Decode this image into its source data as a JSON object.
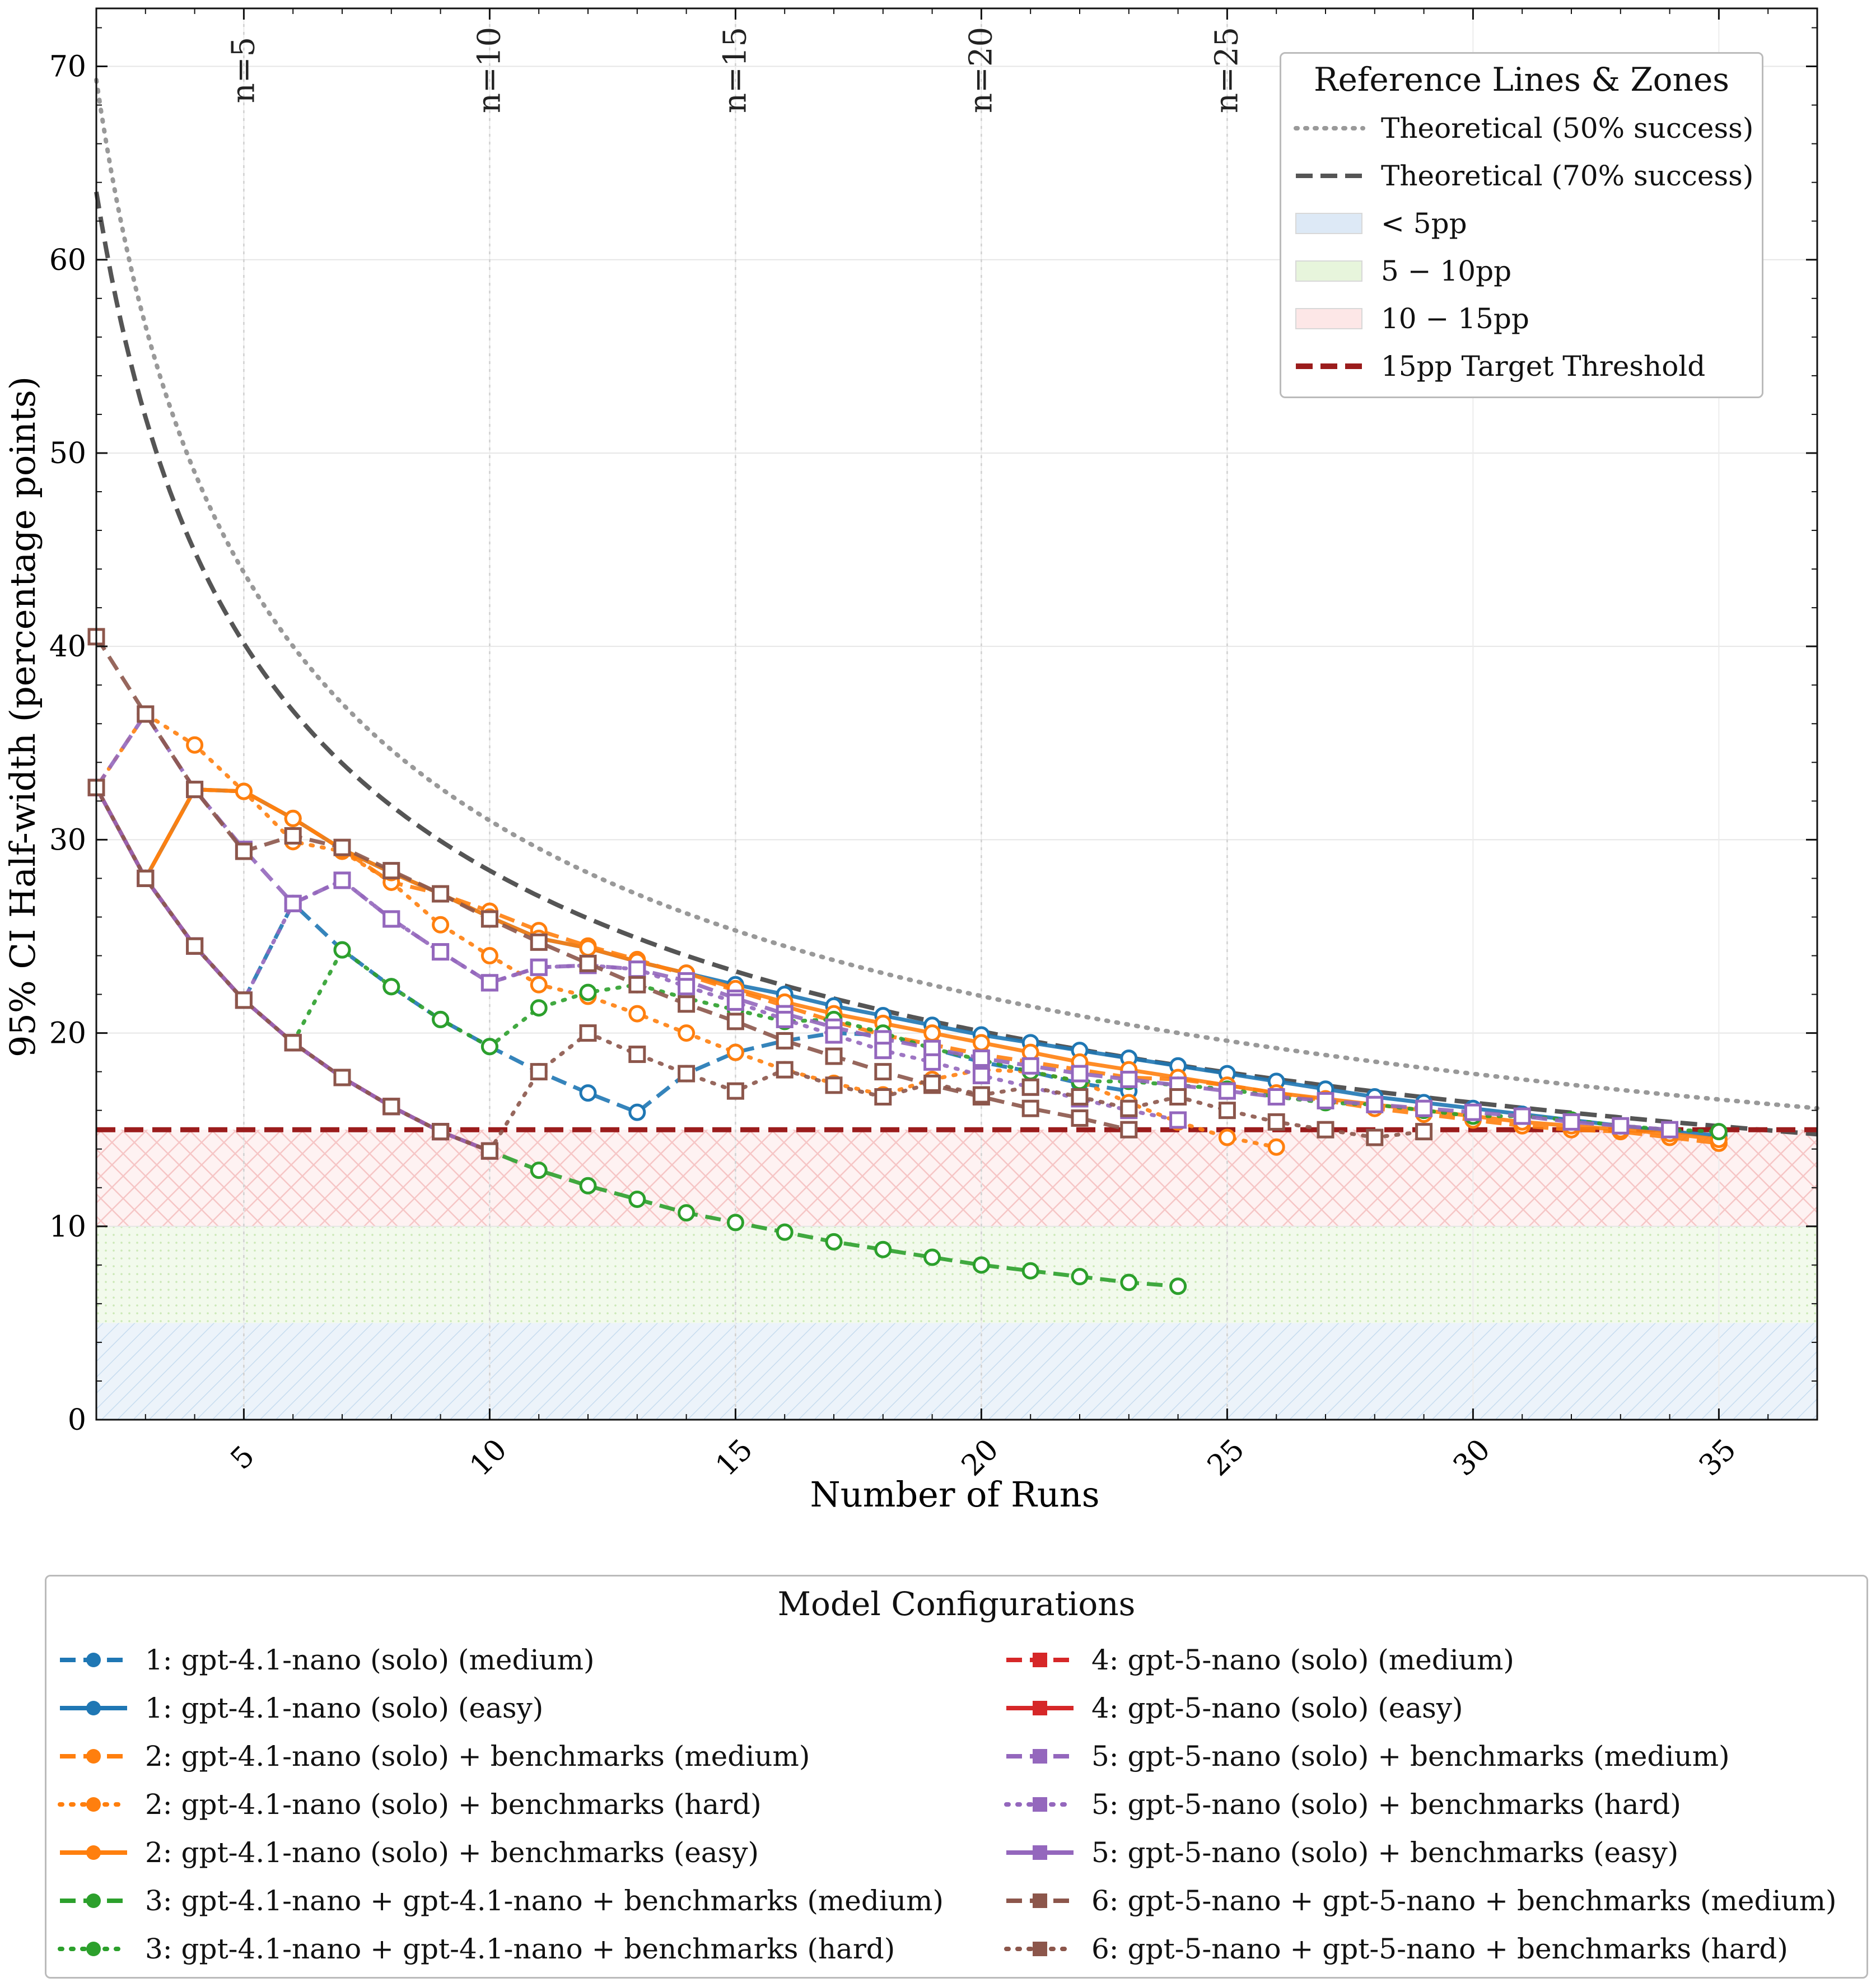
{
  "chart_data": {
    "type": "line",
    "xlabel": "Number of Runs",
    "ylabel": "95% CI Half-width (percentage points)",
    "xlim": [
      2,
      37
    ],
    "ylim": [
      0,
      73
    ],
    "xticks": [
      5,
      10,
      15,
      20,
      25,
      30,
      35
    ],
    "yticks": [
      0,
      10,
      20,
      30,
      40,
      50,
      60,
      70
    ],
    "grid": true,
    "run_markers": [
      {
        "x": 5,
        "label": "n=5"
      },
      {
        "x": 10,
        "label": "n=10"
      },
      {
        "x": 15,
        "label": "n=15"
      },
      {
        "x": 20,
        "label": "n=20"
      },
      {
        "x": 25,
        "label": "n=25"
      }
    ],
    "reference_legend": {
      "title": "Reference Lines & Zones",
      "placement": "top-right",
      "items": [
        {
          "label": "Theoretical (50% success)",
          "kind": "line",
          "color": "#999999",
          "dash": "dotted"
        },
        {
          "label": "Theoretical (70% success)",
          "kind": "line",
          "color": "#555555",
          "dash": "dashed"
        },
        {
          "label": "< 5pp",
          "kind": "zone",
          "color": "#dde9f6"
        },
        {
          "label": "5 − 10pp",
          "kind": "zone",
          "color": "#e7f5dc"
        },
        {
          "label": "10 − 15pp",
          "kind": "zone",
          "color": "#fde7e7"
        },
        {
          "label": "15pp Target Threshold",
          "kind": "line",
          "color": "#9b1c1c",
          "dash": "dashed"
        }
      ]
    },
    "zones": [
      {
        "from": 0,
        "to": 5,
        "color": "#dde9f6"
      },
      {
        "from": 5,
        "to": 10,
        "color": "#e7f5dc"
      },
      {
        "from": 10,
        "to": 15,
        "color": "#fde7e7"
      }
    ],
    "threshold": {
      "y": 15,
      "color": "#9b1c1c"
    },
    "theoretical": [
      {
        "p": 0.5,
        "color": "#999999",
        "dash": "dotted"
      },
      {
        "p": 0.7,
        "color": "#555555",
        "dash": "dashed"
      }
    ],
    "model_legend": {
      "title": "Model Configurations",
      "placement": "bottom",
      "items": [
        {
          "label": "1: gpt-4.1-nano (solo) (medium)",
          "color": "#1f77b4",
          "dash": "dashed",
          "marker": "circle"
        },
        {
          "label": "1: gpt-4.1-nano (solo) (easy)",
          "color": "#1f77b4",
          "dash": "solid",
          "marker": "circle"
        },
        {
          "label": "2: gpt-4.1-nano (solo) + benchmarks (medium)",
          "color": "#ff7f0e",
          "dash": "dashed",
          "marker": "circle"
        },
        {
          "label": "2: gpt-4.1-nano (solo) + benchmarks (hard)",
          "color": "#ff7f0e",
          "dash": "dotted",
          "marker": "circle"
        },
        {
          "label": "2: gpt-4.1-nano (solo) + benchmarks (easy)",
          "color": "#ff7f0e",
          "dash": "solid",
          "marker": "circle"
        },
        {
          "label": "3: gpt-4.1-nano + gpt-4.1-nano + benchmarks (medium)",
          "color": "#2ca02c",
          "dash": "dashed",
          "marker": "circle"
        },
        {
          "label": "3: gpt-4.1-nano + gpt-4.1-nano + benchmarks (hard)",
          "color": "#2ca02c",
          "dash": "dotted",
          "marker": "circle"
        },
        {
          "label": "4: gpt-5-nano (solo) (medium)",
          "color": "#d62728",
          "dash": "dashed",
          "marker": "square"
        },
        {
          "label": "4: gpt-5-nano (solo) (easy)",
          "color": "#d62728",
          "dash": "solid",
          "marker": "square"
        },
        {
          "label": "5: gpt-5-nano (solo) + benchmarks (medium)",
          "color": "#9467bd",
          "dash": "dashed",
          "marker": "square"
        },
        {
          "label": "5: gpt-5-nano (solo) + benchmarks (hard)",
          "color": "#9467bd",
          "dash": "dotted",
          "marker": "square"
        },
        {
          "label": "5: gpt-5-nano (solo) + benchmarks (easy)",
          "color": "#9467bd",
          "dash": "solid",
          "marker": "square"
        },
        {
          "label": "6: gpt-5-nano + gpt-5-nano + benchmarks (medium)",
          "color": "#8c564b",
          "dash": "dashed",
          "marker": "square"
        },
        {
          "label": "6: gpt-5-nano + gpt-5-nano + benchmarks (hard)",
          "color": "#8c564b",
          "dash": "dotted",
          "marker": "square"
        }
      ]
    },
    "series": [
      {
        "name": "1: gpt-4.1-nano (solo) (medium)",
        "color": "#1f77b4",
        "dash": "dashed",
        "marker": "circle",
        "x_start": 2,
        "values": [
          32.7,
          28.0,
          24.5,
          21.7,
          26.7,
          24.3,
          22.4,
          20.7,
          19.3,
          18.0,
          16.9,
          15.9,
          17.9,
          19.0,
          19.6,
          20.0,
          19.9,
          19.2,
          18.5,
          18.0,
          17.4,
          17.0
        ]
      },
      {
        "name": "1: gpt-4.1-nano (solo) (easy)",
        "color": "#1f77b4",
        "dash": "solid",
        "marker": "circle",
        "x_start": 2,
        "values": [
          32.7,
          28.0,
          32.6,
          32.5,
          31.1,
          29.5,
          28.3,
          27.2,
          26.0,
          24.9,
          24.4,
          23.7,
          23.1,
          22.5,
          22.0,
          21.4,
          20.9,
          20.4,
          19.9,
          19.5,
          19.1,
          18.7,
          18.3,
          17.9,
          17.5,
          17.1,
          16.7,
          16.4,
          16.1,
          15.8,
          15.5,
          15.2,
          14.9,
          14.7
        ]
      },
      {
        "name": "2: gpt-4.1-nano (solo) + benchmarks (medium)",
        "color": "#ff7f0e",
        "dash": "dashed",
        "marker": "circle",
        "x_start": 2,
        "values": [
          32.7,
          28.0,
          32.6,
          32.5,
          31.1,
          29.5,
          27.8,
          27.2,
          26.3,
          25.3,
          24.5,
          23.8,
          23.0,
          22.2,
          21.4,
          20.6,
          19.9,
          19.4,
          18.9,
          18.5,
          18.1,
          17.7,
          17.6,
          17.3,
          16.9,
          16.5,
          16.1,
          15.8,
          15.5,
          15.2,
          15.0,
          14.9,
          14.6,
          14.3
        ]
      },
      {
        "name": "2: gpt-4.1-nano (solo) + benchmarks (hard)",
        "color": "#ff7f0e",
        "dash": "dotted",
        "marker": "circle",
        "x_start": 2,
        "values": [
          32.7,
          36.5,
          34.9,
          32.5,
          29.9,
          29.4,
          27.8,
          25.6,
          24.0,
          22.5,
          21.9,
          21.0,
          20.0,
          19.0,
          18.1,
          17.4,
          16.8,
          17.6,
          18.1,
          18.0,
          17.5,
          16.4,
          15.4,
          14.6,
          14.1
        ]
      },
      {
        "name": "2: gpt-4.1-nano (solo) + benchmarks (easy)",
        "color": "#ff7f0e",
        "dash": "solid",
        "marker": "circle",
        "x_start": 2,
        "values": [
          32.7,
          28.0,
          32.6,
          32.5,
          31.1,
          29.5,
          28.3,
          27.2,
          26.0,
          24.9,
          24.4,
          23.7,
          23.1,
          22.3,
          21.6,
          21.0,
          20.5,
          20.0,
          19.5,
          19.0,
          18.5,
          18.1,
          17.7,
          17.3,
          16.9,
          16.6,
          16.3,
          16.0,
          15.7,
          15.4,
          15.2,
          15.0,
          14.8,
          14.5
        ]
      },
      {
        "name": "3: gpt-4.1-nano + gpt-4.1-nano + benchmarks (medium)",
        "color": "#2ca02c",
        "dash": "dashed",
        "marker": "circle",
        "x_start": 2,
        "values": [
          32.7,
          28.0,
          24.5,
          21.7,
          19.5,
          17.7,
          16.2,
          14.9,
          13.9,
          12.9,
          12.1,
          11.4,
          10.7,
          10.2,
          9.7,
          9.2,
          8.8,
          8.4,
          8.0,
          7.7,
          7.4,
          7.1,
          6.9
        ]
      },
      {
        "name": "3: gpt-4.1-nano + gpt-4.1-nano + benchmarks (hard)",
        "color": "#2ca02c",
        "dash": "dotted",
        "marker": "circle",
        "x_start": 2,
        "values": [
          32.7,
          28.0,
          24.5,
          21.7,
          19.5,
          24.3,
          22.4,
          20.7,
          19.3,
          21.3,
          22.1,
          22.5,
          21.8,
          21.2,
          20.6,
          20.7,
          20.0,
          19.2,
          18.6,
          18.0,
          17.5,
          17.5,
          17.3,
          17.1,
          16.7,
          16.4,
          16.3,
          16.0,
          15.7,
          15.7,
          15.5,
          15.2,
          15.0,
          14.9
        ]
      },
      {
        "name": "4: gpt-5-nano (solo) (medium)",
        "color": "#d62728",
        "dash": "dashed",
        "marker": "square",
        "x_start": 2,
        "values": [
          32.7,
          28.0,
          24.5,
          21.7,
          19.5,
          17.7,
          16.2,
          14.9,
          13.9
        ]
      },
      {
        "name": "4: gpt-5-nano (solo) (easy)",
        "color": "#d62728",
        "dash": "solid",
        "marker": "square",
        "x_start": 2,
        "values": [
          32.7,
          28.0,
          24.5,
          21.7,
          19.5,
          17.7,
          16.2,
          14.9,
          13.9
        ]
      },
      {
        "name": "5: gpt-5-nano (solo) + benchmarks (medium)",
        "color": "#9467bd",
        "dash": "dashed",
        "marker": "square",
        "x_start": 2,
        "values": [
          32.7,
          36.5,
          32.6,
          29.5,
          26.7,
          27.9,
          25.9,
          24.2,
          22.6,
          23.4,
          23.5,
          23.3,
          22.7,
          21.8,
          21.0,
          20.3,
          19.7,
          19.2,
          18.7,
          18.3,
          17.9,
          17.6,
          17.3,
          17.0,
          16.7,
          16.5,
          16.3,
          16.1,
          15.9,
          15.7,
          15.4,
          15.2,
          15.0
        ]
      },
      {
        "name": "5: gpt-5-nano (solo) + benchmarks (hard)",
        "color": "#9467bd",
        "dash": "dotted",
        "marker": "square",
        "x_start": 2,
        "values": [
          32.7,
          28.0,
          24.5,
          21.7,
          26.7,
          27.9,
          25.9,
          24.2,
          22.6,
          23.4,
          23.5,
          23.3,
          22.4,
          21.6,
          20.7,
          19.9,
          19.1,
          18.5,
          17.8,
          17.2,
          16.6,
          16.0,
          15.5
        ]
      },
      {
        "name": "5: gpt-5-nano (solo) + benchmarks (easy)",
        "color": "#9467bd",
        "dash": "solid",
        "marker": "square",
        "x_start": 2,
        "values": [
          32.7,
          28.0,
          24.5,
          21.7,
          19.5,
          17.7,
          16.2,
          14.9,
          13.9
        ]
      },
      {
        "name": "6: gpt-5-nano + gpt-5-nano + benchmarks (medium)",
        "color": "#8c564b",
        "dash": "dashed",
        "marker": "square",
        "x_start": 2,
        "values": [
          40.5,
          36.5,
          32.6,
          29.4,
          30.2,
          29.6,
          28.4,
          27.2,
          25.9,
          24.7,
          23.6,
          22.5,
          21.5,
          20.6,
          19.6,
          18.8,
          18.0,
          17.3,
          16.7,
          16.1,
          15.6,
          15.0
        ]
      },
      {
        "name": "6: gpt-5-nano + gpt-5-nano + benchmarks (hard)",
        "color": "#8c564b",
        "dash": "dotted",
        "marker": "square",
        "x_start": 2,
        "values": [
          32.7,
          28.0,
          24.5,
          21.7,
          19.5,
          17.7,
          16.2,
          14.9,
          13.9,
          18.0,
          20.0,
          18.9,
          17.9,
          17.0,
          18.1,
          17.3,
          16.7,
          17.4,
          16.8,
          17.2,
          16.7,
          16.1,
          16.7,
          16.0,
          15.4,
          15.0,
          14.6,
          14.9
        ]
      }
    ]
  }
}
